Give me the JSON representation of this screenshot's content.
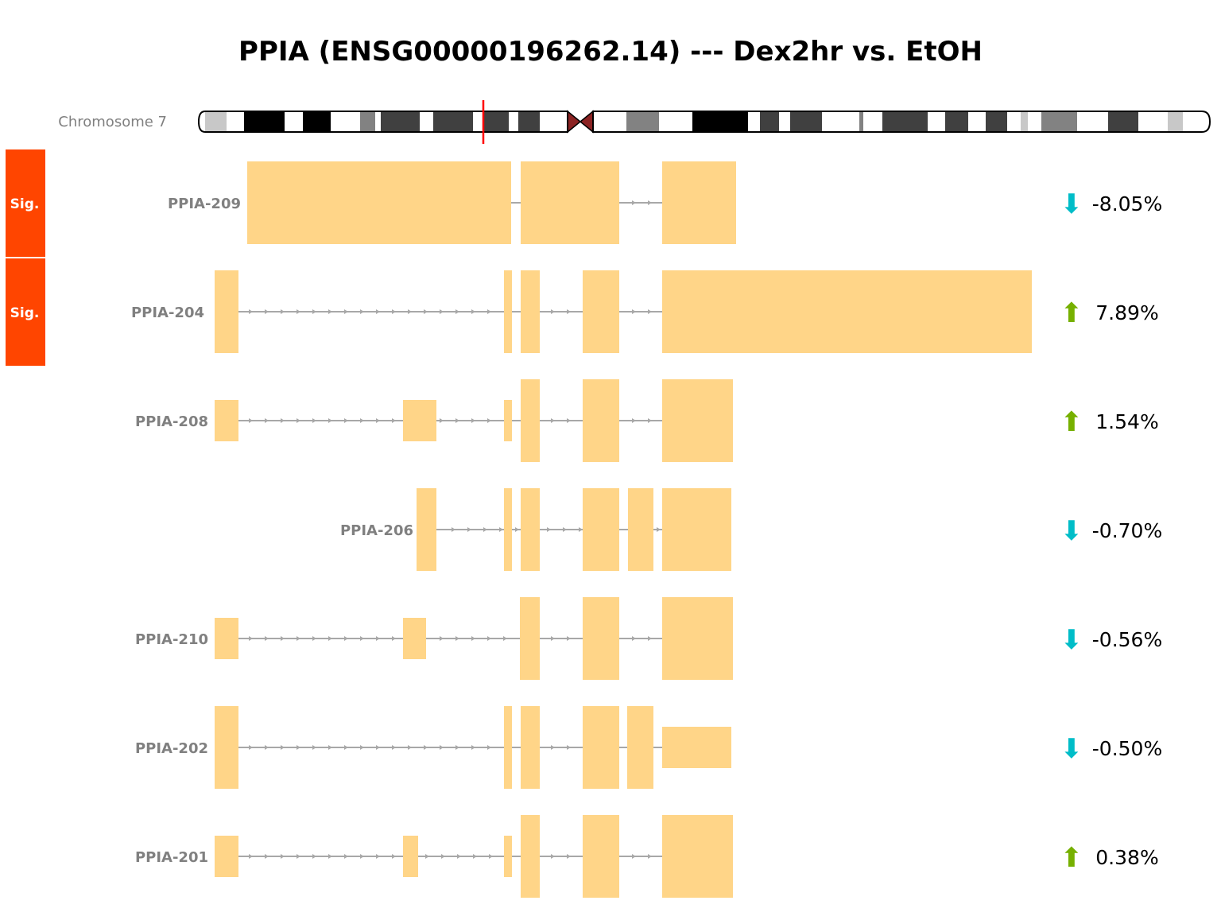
{
  "title": "PPIA (ENSG00000196262.14) --- Dex2hr vs. EtOH",
  "chromosome": {
    "label": "Chromosome 7",
    "colors": {
      "outline": "#000000",
      "centromere": "#8b2323",
      "marker": "#ff0000"
    }
  },
  "colors": {
    "exon": "#ffd588",
    "intron": "#a8a8a8",
    "label": "#808080",
    "sig_badge": "#ff4500",
    "sig_text": "#ffffff",
    "up_arrow": "#76b000",
    "down_arrow": "#00bdc8"
  },
  "transcripts": [
    {
      "name": "PPIA-209",
      "sig": "Sig.",
      "direction": "down",
      "arrow": "⬇",
      "change": "-8.05%"
    },
    {
      "name": "PPIA-204",
      "sig": "Sig.",
      "direction": "up",
      "arrow": "⬆",
      "change": "7.89%"
    },
    {
      "name": "PPIA-208",
      "sig": "",
      "direction": "up",
      "arrow": "⬆",
      "change": "1.54%"
    },
    {
      "name": "PPIA-206",
      "sig": "",
      "direction": "down",
      "arrow": "⬇",
      "change": "-0.70%"
    },
    {
      "name": "PPIA-210",
      "sig": "",
      "direction": "down",
      "arrow": "⬇",
      "change": "-0.56%"
    },
    {
      "name": "PPIA-202",
      "sig": "",
      "direction": "down",
      "arrow": "⬇",
      "change": "-0.50%"
    },
    {
      "name": "PPIA-201",
      "sig": "",
      "direction": "up",
      "arrow": "⬆",
      "change": "0.38%"
    }
  ]
}
